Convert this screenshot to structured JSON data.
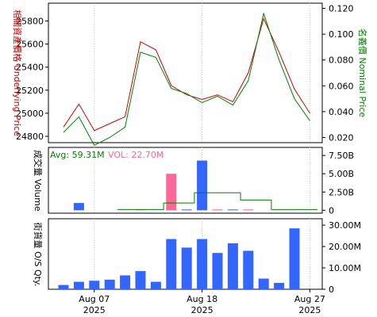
{
  "chart_data": [
    {
      "type": "line",
      "ylabel_left": "相關資產價格 Underlying Price",
      "ylabel_right": "名義價 Nominal Price",
      "x": [
        "2025-08-05",
        "2025-08-06",
        "2025-08-07",
        "2025-08-08",
        "2025-08-11",
        "2025-08-12",
        "2025-08-13",
        "2025-08-14",
        "2025-08-15",
        "2025-08-18",
        "2025-08-19",
        "2025-08-20",
        "2025-08-21",
        "2025-08-22",
        "2025-08-25",
        "2025-08-26",
        "2025-08-27",
        "2025-08-28"
      ],
      "series": [
        {
          "axis": "left",
          "color": "#cc0000",
          "values": [
            24880,
            25080,
            24850,
            24910,
            24970,
            25620,
            25550,
            25240,
            25160,
            25120,
            25160,
            25100,
            25350,
            25820,
            25530,
            25210,
            25000,
            null
          ]
        },
        {
          "axis": "right",
          "color": "#008000",
          "values": [
            0.024,
            0.036,
            0.014,
            0.02,
            0.028,
            0.086,
            0.082,
            0.058,
            0.054,
            0.047,
            0.052,
            0.045,
            0.064,
            0.116,
            0.08,
            0.05,
            0.033,
            null
          ]
        }
      ],
      "left_ticks": [
        "25800",
        "25600",
        "25400",
        "25200",
        "25000",
        "24800"
      ],
      "right_ticks": [
        "0.120",
        "0.100",
        "0.080",
        "0.060",
        "0.040",
        "0.020"
      ],
      "ylim_left": [
        24745,
        25955
      ],
      "ylim_right": [
        0.016,
        0.124
      ]
    },
    {
      "type": "bar",
      "ylabel": "成交量 Volume",
      "legend": {
        "avg": "Avg: 59.31M",
        "vol": "VOL: 22.70M"
      },
      "x": [
        "2025-08-05",
        "2025-08-06",
        "2025-08-07",
        "2025-08-08",
        "2025-08-11",
        "2025-08-12",
        "2025-08-13",
        "2025-08-14",
        "2025-08-15",
        "2025-08-18",
        "2025-08-19",
        "2025-08-20",
        "2025-08-21",
        "2025-08-22",
        "2025-08-25",
        "2025-08-26",
        "2025-08-27",
        "2025-08-28"
      ],
      "values": [
        0,
        1.0,
        0,
        0,
        0,
        0.05,
        0,
        5.0,
        0.1,
        6.8,
        0.1,
        0.1,
        0.1,
        0,
        0,
        0,
        0,
        0
      ],
      "bar_colors": [
        "#3366ff",
        "#3366ff",
        "#3366ff",
        "#3366ff",
        "#3366ff",
        "#ff6699",
        "#3366ff",
        "#ff6699",
        "#3366ff",
        "#3366ff",
        "#ff6699",
        "#3366ff",
        "#ff6699",
        "#3366ff",
        "#3366ff",
        "#3366ff",
        "#3366ff",
        "#3366ff"
      ],
      "avg_line": [
        null,
        null,
        null,
        null,
        0.1,
        0.1,
        0.1,
        1.0,
        1.0,
        2.4,
        2.4,
        2.4,
        1.4,
        1.4,
        0.1,
        0.1,
        0.1,
        null
      ],
      "right_ticks": [
        "7.50B",
        "5.00B",
        "2.50B",
        "0"
      ],
      "ylim": [
        -0.4,
        8.6
      ]
    },
    {
      "type": "bar",
      "ylabel": "街貨量 O/S Qty.",
      "x": [
        "2025-08-05",
        "2025-08-06",
        "2025-08-07",
        "2025-08-08",
        "2025-08-11",
        "2025-08-12",
        "2025-08-13",
        "2025-08-14",
        "2025-08-15",
        "2025-08-18",
        "2025-08-19",
        "2025-08-20",
        "2025-08-21",
        "2025-08-22",
        "2025-08-25",
        "2025-08-26",
        "2025-08-27",
        "2025-08-28"
      ],
      "values": [
        2.0,
        3.5,
        4.0,
        4.5,
        6.5,
        8.5,
        3.5,
        23.5,
        19.5,
        23.5,
        17.0,
        21.5,
        18.0,
        5.0,
        3.0,
        28.5,
        null,
        null
      ],
      "bar_color": "#3366ff",
      "right_ticks": [
        "30.00M",
        "20.00M",
        "10.00M",
        "0"
      ],
      "ylim": [
        0,
        33
      ]
    }
  ],
  "x_ticks": [
    {
      "label": "Aug 07",
      "year": "2025"
    },
    {
      "label": "Aug 18",
      "year": "2025"
    },
    {
      "label": "Aug 27",
      "year": "2025"
    }
  ]
}
